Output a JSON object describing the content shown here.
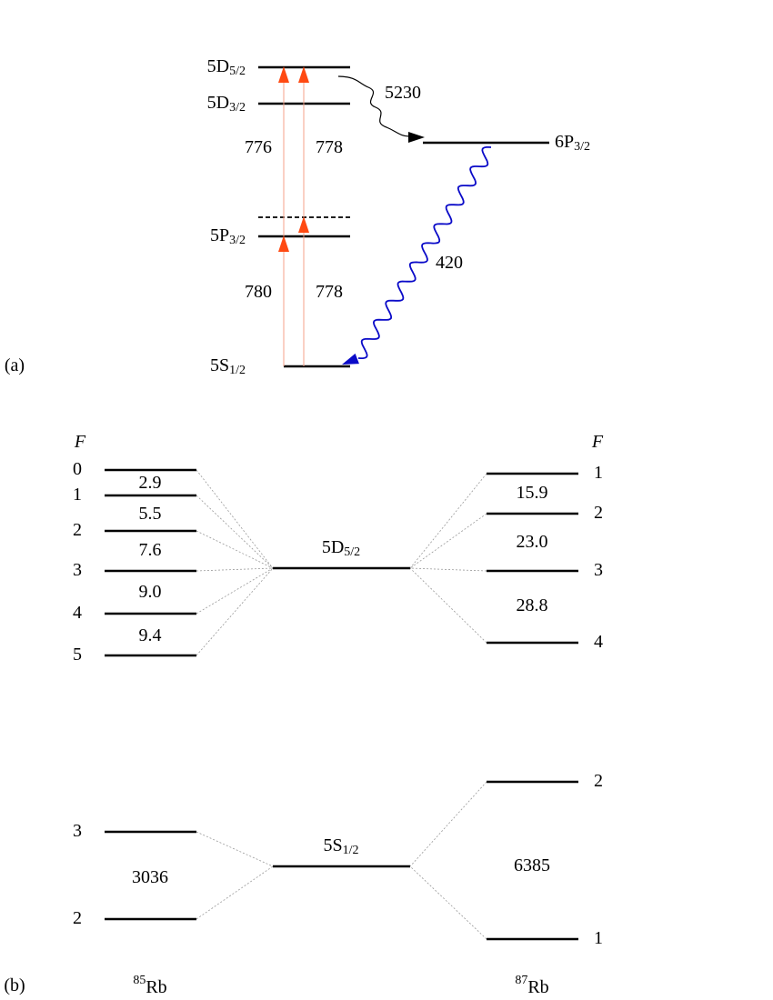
{
  "panel_a": {
    "label": "(a)",
    "levels": [
      {
        "name": "5D",
        "sub": "5/2"
      },
      {
        "name": "5D",
        "sub": "3/2"
      },
      {
        "name": "6P",
        "sub": "3/2"
      },
      {
        "name": "5P",
        "sub": "3/2"
      },
      {
        "name": "5S",
        "sub": "1/2"
      }
    ],
    "wavelengths": [
      "776",
      "778",
      "780",
      "778",
      "5230",
      "420"
    ]
  },
  "panel_b": {
    "label": "(b)",
    "center_levels": [
      {
        "name": "5D",
        "sub": "5/2"
      },
      {
        "name": "5S",
        "sub": "1/2"
      }
    ],
    "isotopes": [
      {
        "mass": "85",
        "element": "Rb",
        "f_label": "F",
        "upper_f": [
          "0",
          "1",
          "2",
          "3",
          "4",
          "5"
        ],
        "upper_splittings": [
          "2.9",
          "5.5",
          "7.6",
          "9.0",
          "9.4"
        ],
        "lower_f": [
          "3",
          "2"
        ],
        "lower_splitting": "3036"
      },
      {
        "mass": "87",
        "element": "Rb",
        "f_label": "F",
        "upper_f": [
          "1",
          "2",
          "3",
          "4"
        ],
        "upper_splittings": [
          "15.9",
          "23.0",
          "28.8"
        ],
        "lower_f": [
          "2",
          "1"
        ],
        "lower_splitting": "6385"
      }
    ]
  }
}
